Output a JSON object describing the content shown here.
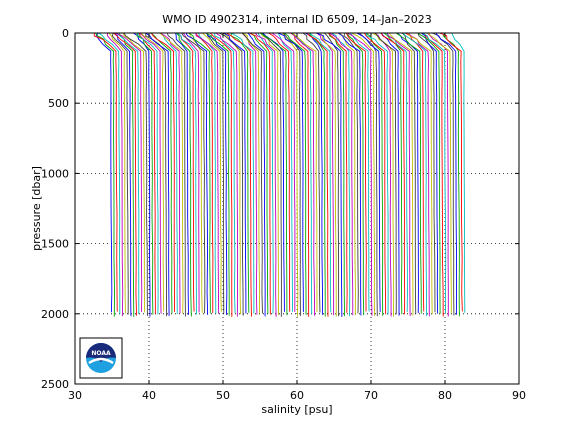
{
  "chart_data": {
    "type": "line",
    "title": "WMO ID 4902314, internal ID 6509, 14–Jan–2023",
    "xlabel": "salinity [psu]",
    "ylabel": "pressure [dbar]",
    "xlim": [
      30,
      90
    ],
    "ylim": [
      0,
      2500
    ],
    "y_reversed": true,
    "xticks": [
      30,
      40,
      50,
      60,
      70,
      80,
      90
    ],
    "yticks": [
      0,
      500,
      1000,
      1500,
      2000,
      2500
    ],
    "xtick_labels": [
      "30",
      "40",
      "50",
      "60",
      "70",
      "80",
      "90"
    ],
    "ytick_labels": [
      "0",
      "500",
      "1000",
      "1500",
      "2000",
      "2500"
    ],
    "grid": "dotted",
    "profile_count": 130,
    "profile_start_salinity": 34.6,
    "profile_offset_step": 0.37,
    "profile_max_pressure": 2000,
    "series_colors": [
      "#0000ff",
      "#00aa00",
      "#ff0000",
      "#00bfbf",
      "#bf00bf",
      "#bfbf00",
      "#404040"
    ],
    "logo": {
      "label": "NOAA",
      "colors": {
        "dark": "#1a2a7a",
        "light": "#1fa0e0",
        "white": "#ffffff"
      }
    }
  }
}
